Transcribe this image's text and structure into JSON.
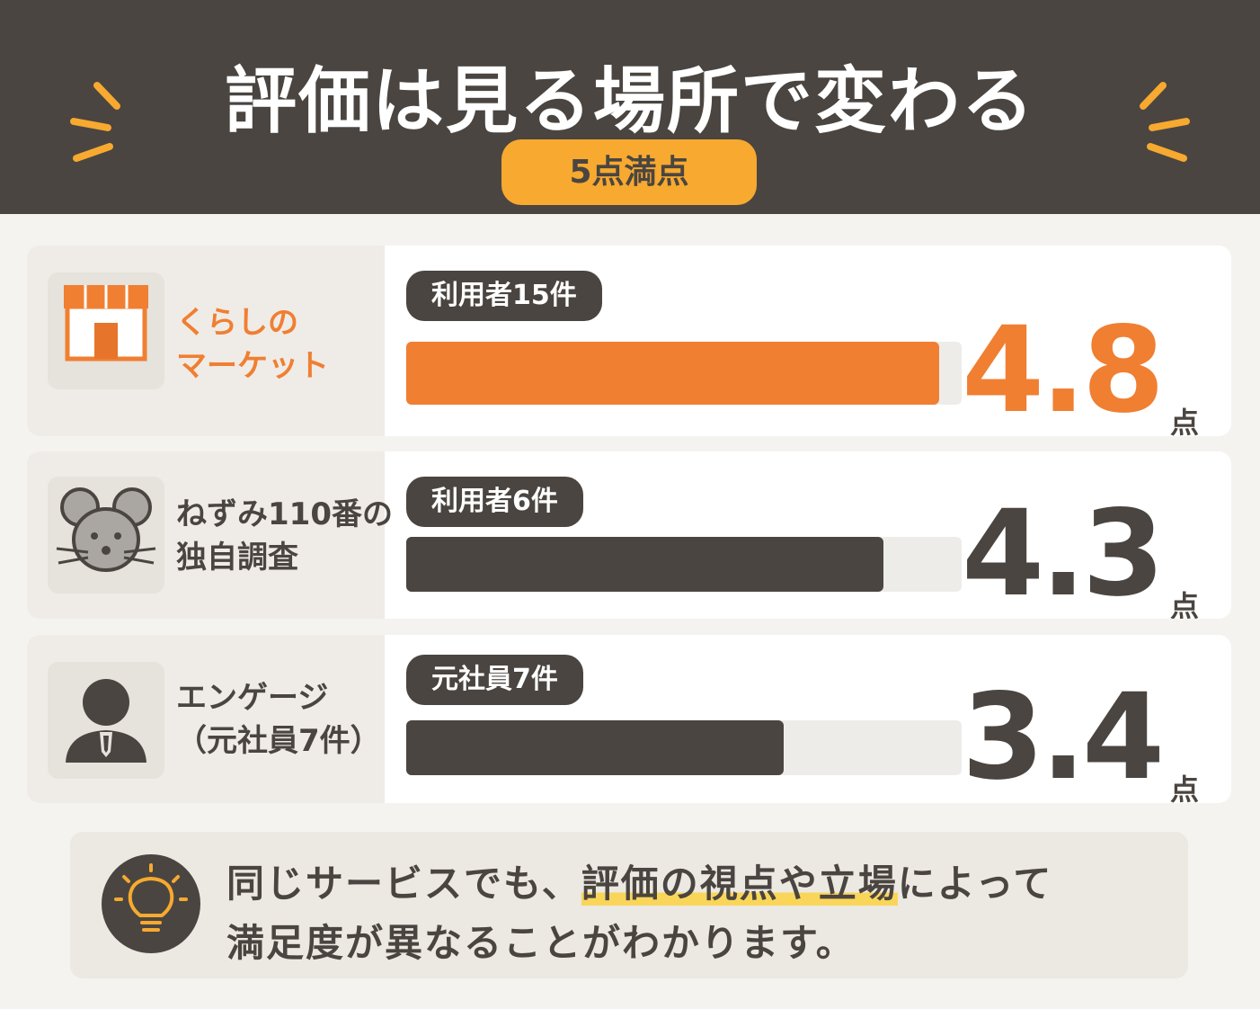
{
  "chart_data": {
    "type": "bar",
    "title": "評価は見る場所で変わる",
    "subtitle": "5点満点",
    "xlim": [
      0,
      5
    ],
    "categories": [
      "くらしの\nマーケット",
      "ねずみ110番の\n独自調査",
      "エンゲージ\n（元社員7件）"
    ],
    "badges": [
      "利用者15件",
      "利用者6件",
      "元社員7件"
    ],
    "values": [
      4.8,
      4.3,
      3.4
    ],
    "unit": "点",
    "colors": [
      "#f07f32",
      "#4a4540",
      "#4a4540"
    ],
    "note": [
      "同じサービスでも、",
      "評価の視点や立場",
      "によって\n満足度が異なることがわかります。"
    ]
  }
}
